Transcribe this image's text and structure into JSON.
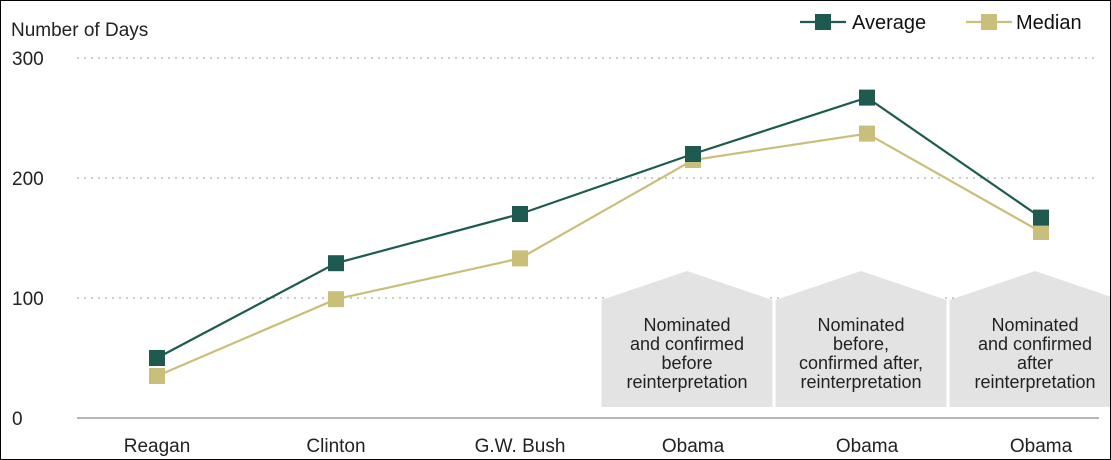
{
  "chart_data": {
    "type": "line",
    "ylabel": "Number of Days",
    "ylim": [
      0,
      300
    ],
    "yticks": [
      0,
      100,
      200,
      300
    ],
    "grid": "horizontal dotted",
    "legend_position": "top-right",
    "categories": [
      "Reagan",
      "Clinton",
      "G.W. Bush",
      "Obama",
      "Obama",
      "Obama"
    ],
    "series": [
      {
        "name": "Average",
        "color": "#1e5a50",
        "marker": "square",
        "values": [
          50,
          129,
          170,
          220,
          267,
          167
        ]
      },
      {
        "name": "Median",
        "color": "#c9bf7a",
        "marker": "square",
        "values": [
          35,
          99,
          133,
          215,
          237,
          155
        ]
      }
    ],
    "annotations": [
      {
        "category_index": 3,
        "lines": [
          "Nominated",
          "and confirmed",
          "before",
          "reinterpretation"
        ]
      },
      {
        "category_index": 4,
        "lines": [
          "Nominated",
          "before,",
          "confirmed after,",
          "reinterpretation"
        ]
      },
      {
        "category_index": 5,
        "lines": [
          "Nominated",
          "and confirmed",
          "after",
          "reinterpretation"
        ]
      }
    ],
    "annotation_color": "#e3e3e3"
  }
}
